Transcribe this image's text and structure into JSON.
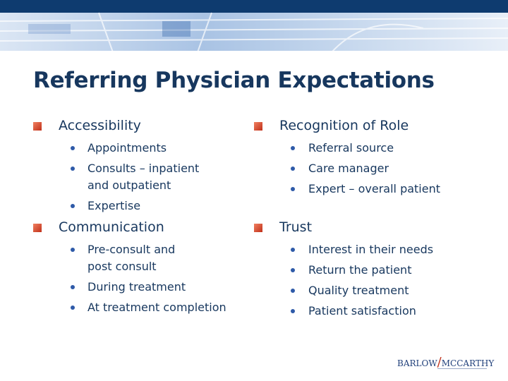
{
  "title": "Referring Physician Expectations",
  "columns": [
    {
      "sections": [
        {
          "heading": "Accessibility",
          "items": [
            [
              "Appointments"
            ],
            [
              "Consults – inpatient",
              "and outpatient"
            ],
            [
              "Expertise"
            ]
          ]
        },
        {
          "heading": "Communication",
          "items": [
            [
              "Pre-consult and",
              "post consult"
            ],
            [
              "During treatment"
            ],
            [
              "At treatment completion"
            ]
          ]
        }
      ]
    },
    {
      "sections": [
        {
          "heading": "Recognition of Role",
          "items": [
            [
              "Referral source"
            ],
            [
              "Care manager"
            ],
            [
              "Expert – overall patient"
            ]
          ]
        },
        {
          "heading": "Trust",
          "items": [
            [
              "Interest in their needs"
            ],
            [
              "Return the patient"
            ],
            [
              "Quality treatment"
            ],
            [
              "Patient satisfaction"
            ]
          ]
        }
      ]
    }
  ],
  "logo": {
    "left": "BARLOW",
    "right": "MCCARTHY"
  }
}
